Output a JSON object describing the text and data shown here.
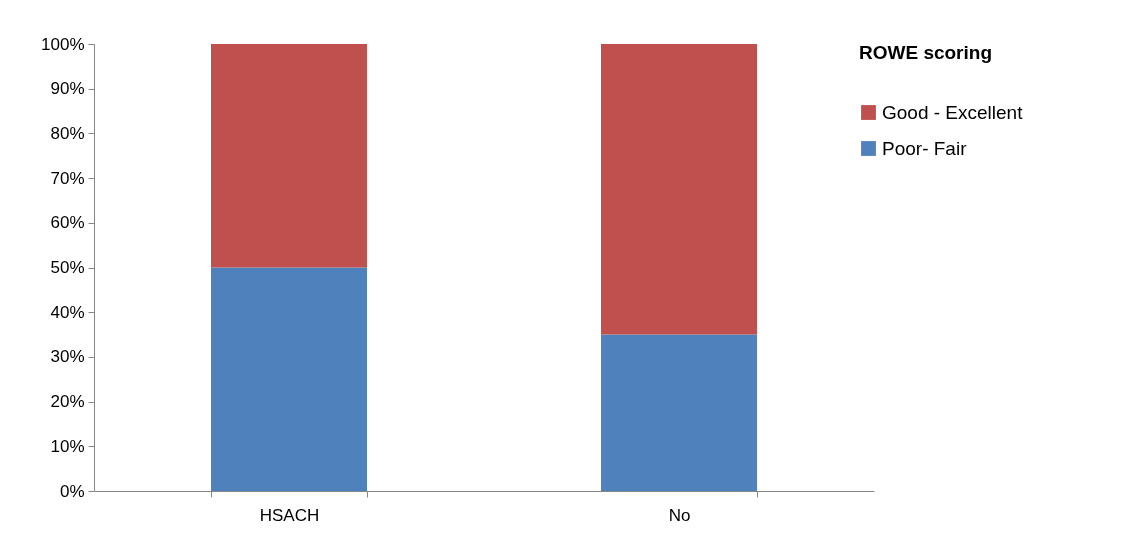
{
  "chart_data": {
    "type": "bar",
    "stacked": true,
    "legend_title": "ROWE scoring",
    "legend": "right",
    "grid": false,
    "categories": [
      "HSACH",
      "No"
    ],
    "series": [
      {
        "name": "Poor- Fair",
        "color": "#4f81bd",
        "values": [
          50,
          35
        ]
      },
      {
        "name": "Good - Excellent",
        "color": "#c0504d",
        "values": [
          50,
          65
        ]
      }
    ],
    "ylim": [
      0,
      100
    ],
    "yticks": [
      {
        "value": 0,
        "label": "0%"
      },
      {
        "value": 10,
        "label": "10%"
      },
      {
        "value": 20,
        "label": "20%"
      },
      {
        "value": 30,
        "label": "30%"
      },
      {
        "value": 40,
        "label": "40%"
      },
      {
        "value": 50,
        "label": "50%"
      },
      {
        "value": 60,
        "label": "60%"
      },
      {
        "value": 70,
        "label": "70%"
      },
      {
        "value": 80,
        "label": "80%"
      },
      {
        "value": 90,
        "label": "90%"
      },
      {
        "value": 100,
        "label": "100%"
      }
    ]
  }
}
